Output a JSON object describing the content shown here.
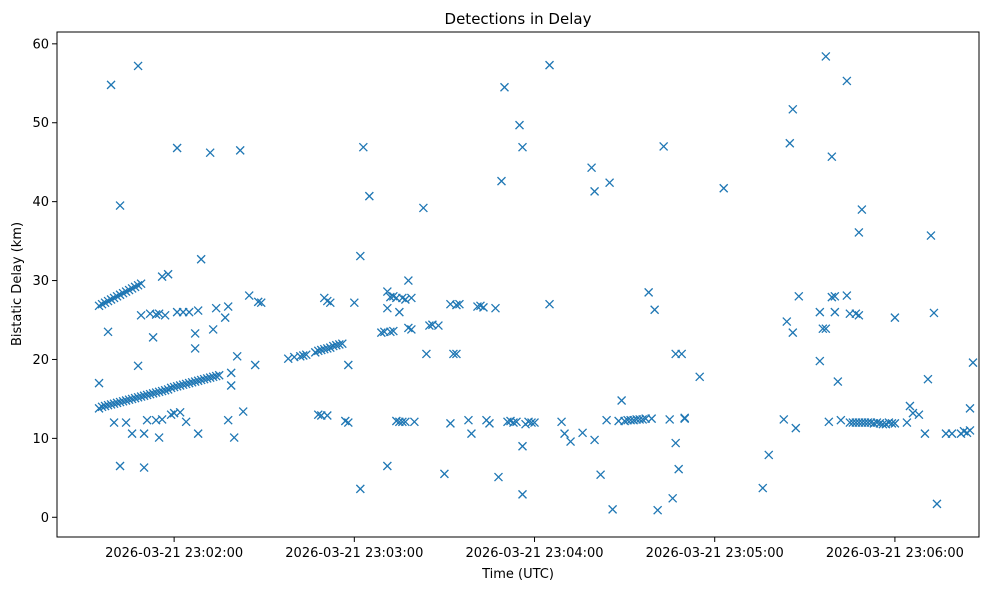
{
  "chart_data": {
    "type": "scatter",
    "title": "Detections in Delay",
    "xlabel": "Time (UTC)",
    "ylabel": "Bistatic Delay (km)",
    "x_unit": "UTC time",
    "xlim": [
      "2026-03-21 23:01:21",
      "2026-03-21 23:06:28"
    ],
    "ylim": [
      -2.5,
      61.5
    ],
    "x_ticks": [
      "2026-03-21 23:02:00",
      "2026-03-21 23:03:00",
      "2026-03-21 23:04:00",
      "2026-03-21 23:05:00",
      "2026-03-21 23:06:00"
    ],
    "y_ticks": [
      0,
      10,
      20,
      30,
      40,
      50,
      60
    ],
    "grid": false,
    "marker": "x",
    "color": "#1f77b4",
    "points": [
      [
        "23:01:35",
        13.8
      ],
      [
        "23:01:36",
        14.0
      ],
      [
        "23:01:37",
        14.1
      ],
      [
        "23:01:38",
        14.2
      ],
      [
        "23:01:39",
        14.3
      ],
      [
        "23:01:40",
        14.4
      ],
      [
        "23:01:41",
        14.5
      ],
      [
        "23:01:42",
        14.6
      ],
      [
        "23:01:43",
        14.7
      ],
      [
        "23:01:44",
        14.8
      ],
      [
        "23:01:45",
        14.9
      ],
      [
        "23:01:46",
        15.0
      ],
      [
        "23:01:47",
        15.1
      ],
      [
        "23:01:48",
        15.2
      ],
      [
        "23:01:49",
        15.3
      ],
      [
        "23:01:50",
        15.4
      ],
      [
        "23:01:51",
        15.5
      ],
      [
        "23:01:52",
        15.6
      ],
      [
        "23:01:53",
        15.7
      ],
      [
        "23:01:54",
        15.8
      ],
      [
        "23:01:55",
        15.9
      ],
      [
        "23:01:56",
        16.0
      ],
      [
        "23:01:57",
        16.1
      ],
      [
        "23:01:58",
        16.2
      ],
      [
        "23:01:59",
        16.4
      ],
      [
        "23:02:00",
        16.5
      ],
      [
        "23:02:01",
        16.6
      ],
      [
        "23:02:02",
        16.7
      ],
      [
        "23:02:03",
        16.8
      ],
      [
        "23:02:04",
        16.9
      ],
      [
        "23:02:05",
        17.0
      ],
      [
        "23:02:06",
        17.1
      ],
      [
        "23:02:07",
        17.2
      ],
      [
        "23:02:08",
        17.3
      ],
      [
        "23:02:09",
        17.4
      ],
      [
        "23:02:10",
        17.5
      ],
      [
        "23:02:11",
        17.6
      ],
      [
        "23:02:12",
        17.7
      ],
      [
        "23:02:13",
        17.8
      ],
      [
        "23:02:14",
        17.9
      ],
      [
        "23:02:15",
        18.0
      ],
      [
        "23:01:35",
        26.8
      ],
      [
        "23:01:36",
        27.0
      ],
      [
        "23:01:37",
        27.2
      ],
      [
        "23:01:38",
        27.4
      ],
      [
        "23:01:39",
        27.6
      ],
      [
        "23:01:40",
        27.8
      ],
      [
        "23:01:41",
        28.0
      ],
      [
        "23:01:42",
        28.2
      ],
      [
        "23:01:43",
        28.4
      ],
      [
        "23:01:44",
        28.6
      ],
      [
        "23:01:45",
        28.8
      ],
      [
        "23:01:46",
        29.0
      ],
      [
        "23:01:47",
        29.2
      ],
      [
        "23:01:48",
        29.4
      ],
      [
        "23:01:49",
        29.6
      ],
      [
        "23:01:35",
        17.0
      ],
      [
        "23:01:38",
        23.5
      ],
      [
        "23:01:39",
        54.8
      ],
      [
        "23:01:40",
        12.0
      ],
      [
        "23:01:42",
        39.5
      ],
      [
        "23:01:42",
        6.5
      ],
      [
        "23:01:44",
        12.0
      ],
      [
        "23:01:46",
        10.6
      ],
      [
        "23:01:48",
        57.2
      ],
      [
        "23:01:48",
        19.2
      ],
      [
        "23:01:49",
        25.6
      ],
      [
        "23:01:50",
        10.6
      ],
      [
        "23:01:50",
        6.3
      ],
      [
        "23:01:51",
        12.3
      ],
      [
        "23:01:52",
        25.8
      ],
      [
        "23:01:53",
        22.8
      ],
      [
        "23:01:54",
        12.3
      ],
      [
        "23:01:54",
        25.7
      ],
      [
        "23:01:55",
        10.1
      ],
      [
        "23:01:55",
        25.8
      ],
      [
        "23:01:56",
        30.5
      ],
      [
        "23:01:56",
        12.4
      ],
      [
        "23:01:57",
        25.6
      ],
      [
        "23:01:58",
        30.8
      ],
      [
        "23:01:59",
        13.0
      ],
      [
        "23:02:00",
        13.2
      ],
      [
        "23:02:01",
        46.8
      ],
      [
        "23:02:01",
        26.0
      ],
      [
        "23:02:02",
        13.3
      ],
      [
        "23:02:03",
        26.0
      ],
      [
        "23:02:04",
        12.1
      ],
      [
        "23:02:05",
        26.0
      ],
      [
        "23:02:07",
        21.4
      ],
      [
        "23:02:07",
        23.3
      ],
      [
        "23:02:08",
        26.2
      ],
      [
        "23:02:08",
        10.6
      ],
      [
        "23:02:09",
        32.7
      ],
      [
        "23:02:12",
        46.2
      ],
      [
        "23:02:13",
        23.8
      ],
      [
        "23:02:14",
        26.5
      ],
      [
        "23:02:17",
        25.3
      ],
      [
        "23:02:18",
        12.3
      ],
      [
        "23:02:18",
        26.7
      ],
      [
        "23:02:19",
        18.3
      ],
      [
        "23:02:19",
        16.7
      ],
      [
        "23:02:20",
        10.1
      ],
      [
        "23:02:21",
        20.4
      ],
      [
        "23:02:22",
        46.5
      ],
      [
        "23:02:23",
        13.4
      ],
      [
        "23:02:25",
        28.1
      ],
      [
        "23:02:27",
        19.3
      ],
      [
        "23:02:28",
        27.3
      ],
      [
        "23:02:29",
        27.2
      ],
      [
        "23:02:38",
        20.1
      ],
      [
        "23:02:40",
        20.3
      ],
      [
        "23:02:42",
        20.4
      ],
      [
        "23:02:43",
        20.5
      ],
      [
        "23:02:44",
        20.6
      ],
      [
        "23:02:47",
        20.9
      ],
      [
        "23:02:48",
        21.1
      ],
      [
        "23:02:49",
        21.2
      ],
      [
        "23:02:50",
        21.3
      ],
      [
        "23:02:51",
        21.4
      ],
      [
        "23:02:52",
        21.5
      ],
      [
        "23:02:53",
        21.7
      ],
      [
        "23:02:54",
        21.8
      ],
      [
        "23:02:55",
        21.9
      ],
      [
        "23:02:56",
        22.0
      ],
      [
        "23:02:48",
        13.0
      ],
      [
        "23:02:49",
        12.9
      ],
      [
        "23:02:50",
        27.8
      ],
      [
        "23:02:51",
        27.4
      ],
      [
        "23:02:51",
        12.9
      ],
      [
        "23:02:52",
        27.2
      ],
      [
        "23:02:57",
        12.2
      ],
      [
        "23:02:58",
        12.0
      ],
      [
        "23:02:58",
        19.3
      ],
      [
        "23:03:00",
        27.2
      ],
      [
        "23:03:02",
        33.1
      ],
      [
        "23:03:02",
        3.6
      ],
      [
        "23:03:03",
        46.9
      ],
      [
        "23:03:05",
        40.7
      ],
      [
        "23:03:09",
        23.4
      ],
      [
        "23:03:10",
        23.5
      ],
      [
        "23:03:11",
        26.5
      ],
      [
        "23:03:11",
        28.6
      ],
      [
        "23:03:11",
        6.5
      ],
      [
        "23:03:12",
        23.5
      ],
      [
        "23:03:12",
        27.9
      ],
      [
        "23:03:13",
        23.6
      ],
      [
        "23:03:13",
        28.0
      ],
      [
        "23:03:14",
        12.2
      ],
      [
        "23:03:14",
        27.8
      ],
      [
        "23:03:15",
        12.1
      ],
      [
        "23:03:15",
        26.0
      ],
      [
        "23:03:16",
        27.8
      ],
      [
        "23:03:16",
        12.1
      ],
      [
        "23:03:17",
        12.1
      ],
      [
        "23:03:17",
        27.6
      ],
      [
        "23:03:18",
        30.0
      ],
      [
        "23:03:18",
        24.0
      ],
      [
        "23:03:19",
        23.8
      ],
      [
        "23:03:19",
        27.8
      ],
      [
        "23:03:20",
        12.1
      ],
      [
        "23:03:23",
        39.2
      ],
      [
        "23:03:24",
        20.7
      ],
      [
        "23:03:25",
        24.3
      ],
      [
        "23:03:26",
        24.4
      ],
      [
        "23:03:28",
        24.3
      ],
      [
        "23:03:30",
        5.5
      ],
      [
        "23:03:32",
        11.9
      ],
      [
        "23:03:32",
        27.0
      ],
      [
        "23:03:33",
        20.7
      ],
      [
        "23:03:34",
        20.7
      ],
      [
        "23:03:34",
        26.9
      ],
      [
        "23:03:35",
        27.0
      ],
      [
        "23:03:38",
        12.3
      ],
      [
        "23:03:39",
        10.6
      ],
      [
        "23:03:41",
        26.7
      ],
      [
        "23:03:42",
        26.8
      ],
      [
        "23:03:43",
        26.6
      ],
      [
        "23:03:44",
        12.3
      ],
      [
        "23:03:45",
        11.9
      ],
      [
        "23:03:47",
        26.5
      ],
      [
        "23:03:48",
        5.1
      ],
      [
        "23:03:49",
        42.6
      ],
      [
        "23:03:50",
        54.5
      ],
      [
        "23:03:51",
        12.1
      ],
      [
        "23:03:52",
        12.2
      ],
      [
        "23:03:53",
        12.0
      ],
      [
        "23:03:54",
        12.1
      ],
      [
        "23:03:55",
        49.7
      ],
      [
        "23:03:56",
        46.9
      ],
      [
        "23:03:56",
        9.0
      ],
      [
        "23:03:56",
        2.9
      ],
      [
        "23:03:57",
        11.8
      ],
      [
        "23:03:58",
        12.1
      ],
      [
        "23:03:59",
        12.0
      ],
      [
        "23:04:00",
        12.0
      ],
      [
        "23:04:05",
        57.3
      ],
      [
        "23:04:05",
        27.0
      ],
      [
        "23:04:09",
        12.1
      ],
      [
        "23:04:10",
        10.6
      ],
      [
        "23:04:12",
        9.6
      ],
      [
        "23:04:16",
        10.7
      ],
      [
        "23:04:19",
        44.3
      ],
      [
        "23:04:20",
        41.3
      ],
      [
        "23:04:20",
        9.8
      ],
      [
        "23:04:22",
        5.4
      ],
      [
        "23:04:24",
        12.3
      ],
      [
        "23:04:25",
        42.4
      ],
      [
        "23:04:26",
        1.0
      ],
      [
        "23:04:28",
        12.2
      ],
      [
        "23:04:29",
        14.8
      ],
      [
        "23:04:30",
        12.2
      ],
      [
        "23:04:31",
        12.3
      ],
      [
        "23:04:32",
        12.3
      ],
      [
        "23:04:33",
        12.3
      ],
      [
        "23:04:34",
        12.4
      ],
      [
        "23:04:35",
        12.4
      ],
      [
        "23:04:36",
        12.4
      ],
      [
        "23:04:37",
        12.5
      ],
      [
        "23:04:38",
        28.5
      ],
      [
        "23:04:39",
        12.5
      ],
      [
        "23:04:40",
        26.3
      ],
      [
        "23:04:41",
        0.9
      ],
      [
        "23:04:43",
        47.0
      ],
      [
        "23:04:45",
        12.4
      ],
      [
        "23:04:46",
        2.4
      ],
      [
        "23:04:47",
        20.7
      ],
      [
        "23:04:47",
        9.4
      ],
      [
        "23:04:48",
        6.1
      ],
      [
        "23:04:49",
        20.7
      ],
      [
        "23:04:50",
        12.5
      ],
      [
        "23:04:50",
        12.6
      ],
      [
        "23:04:55",
        17.8
      ],
      [
        "23:05:03",
        41.7
      ],
      [
        "23:05:16",
        3.7
      ],
      [
        "23:05:18",
        7.9
      ],
      [
        "23:05:23",
        12.4
      ],
      [
        "23:05:24",
        24.8
      ],
      [
        "23:05:25",
        47.4
      ],
      [
        "23:05:26",
        51.7
      ],
      [
        "23:05:26",
        23.4
      ],
      [
        "23:05:27",
        11.3
      ],
      [
        "23:05:28",
        28.0
      ],
      [
        "23:05:35",
        26.0
      ],
      [
        "23:05:35",
        19.8
      ],
      [
        "23:05:36",
        23.9
      ],
      [
        "23:05:37",
        23.9
      ],
      [
        "23:05:37",
        58.4
      ],
      [
        "23:05:38",
        12.1
      ],
      [
        "23:05:39",
        45.7
      ],
      [
        "23:05:39",
        27.9
      ],
      [
        "23:05:40",
        28.0
      ],
      [
        "23:05:40",
        26.0
      ],
      [
        "23:05:41",
        17.2
      ],
      [
        "23:05:42",
        12.3
      ],
      [
        "23:05:44",
        55.3
      ],
      [
        "23:05:44",
        28.1
      ],
      [
        "23:05:45",
        25.8
      ],
      [
        "23:05:45",
        12.0
      ],
      [
        "23:05:46",
        12.0
      ],
      [
        "23:05:47",
        25.8
      ],
      [
        "23:05:47",
        12.0
      ],
      [
        "23:05:48",
        25.6
      ],
      [
        "23:05:48",
        12.0
      ],
      [
        "23:05:48",
        36.1
      ],
      [
        "23:05:49",
        39.0
      ],
      [
        "23:05:49",
        12.0
      ],
      [
        "23:05:50",
        12.0
      ],
      [
        "23:05:51",
        12.0
      ],
      [
        "23:05:52",
        12.0
      ],
      [
        "23:05:53",
        11.9
      ],
      [
        "23:05:54",
        12.0
      ],
      [
        "23:05:55",
        11.9
      ],
      [
        "23:05:56",
        11.8
      ],
      [
        "23:05:57",
        11.8
      ],
      [
        "23:05:58",
        12.0
      ],
      [
        "23:05:59",
        11.9
      ],
      [
        "23:06:00",
        25.3
      ],
      [
        "23:06:00",
        11.9
      ],
      [
        "23:06:04",
        12.0
      ],
      [
        "23:06:05",
        14.1
      ],
      [
        "23:06:06",
        13.2
      ],
      [
        "23:06:08",
        13.0
      ],
      [
        "23:06:10",
        10.6
      ],
      [
        "23:06:11",
        17.5
      ],
      [
        "23:06:12",
        35.7
      ],
      [
        "23:06:13",
        25.9
      ],
      [
        "23:06:14",
        1.7
      ],
      [
        "23:06:17",
        10.6
      ],
      [
        "23:06:19",
        10.6
      ],
      [
        "23:06:22",
        10.6
      ],
      [
        "23:06:23",
        10.9
      ],
      [
        "23:06:24",
        10.7
      ],
      [
        "23:06:25",
        13.8
      ],
      [
        "23:06:25",
        11.0
      ],
      [
        "23:06:26",
        19.6
      ]
    ]
  }
}
